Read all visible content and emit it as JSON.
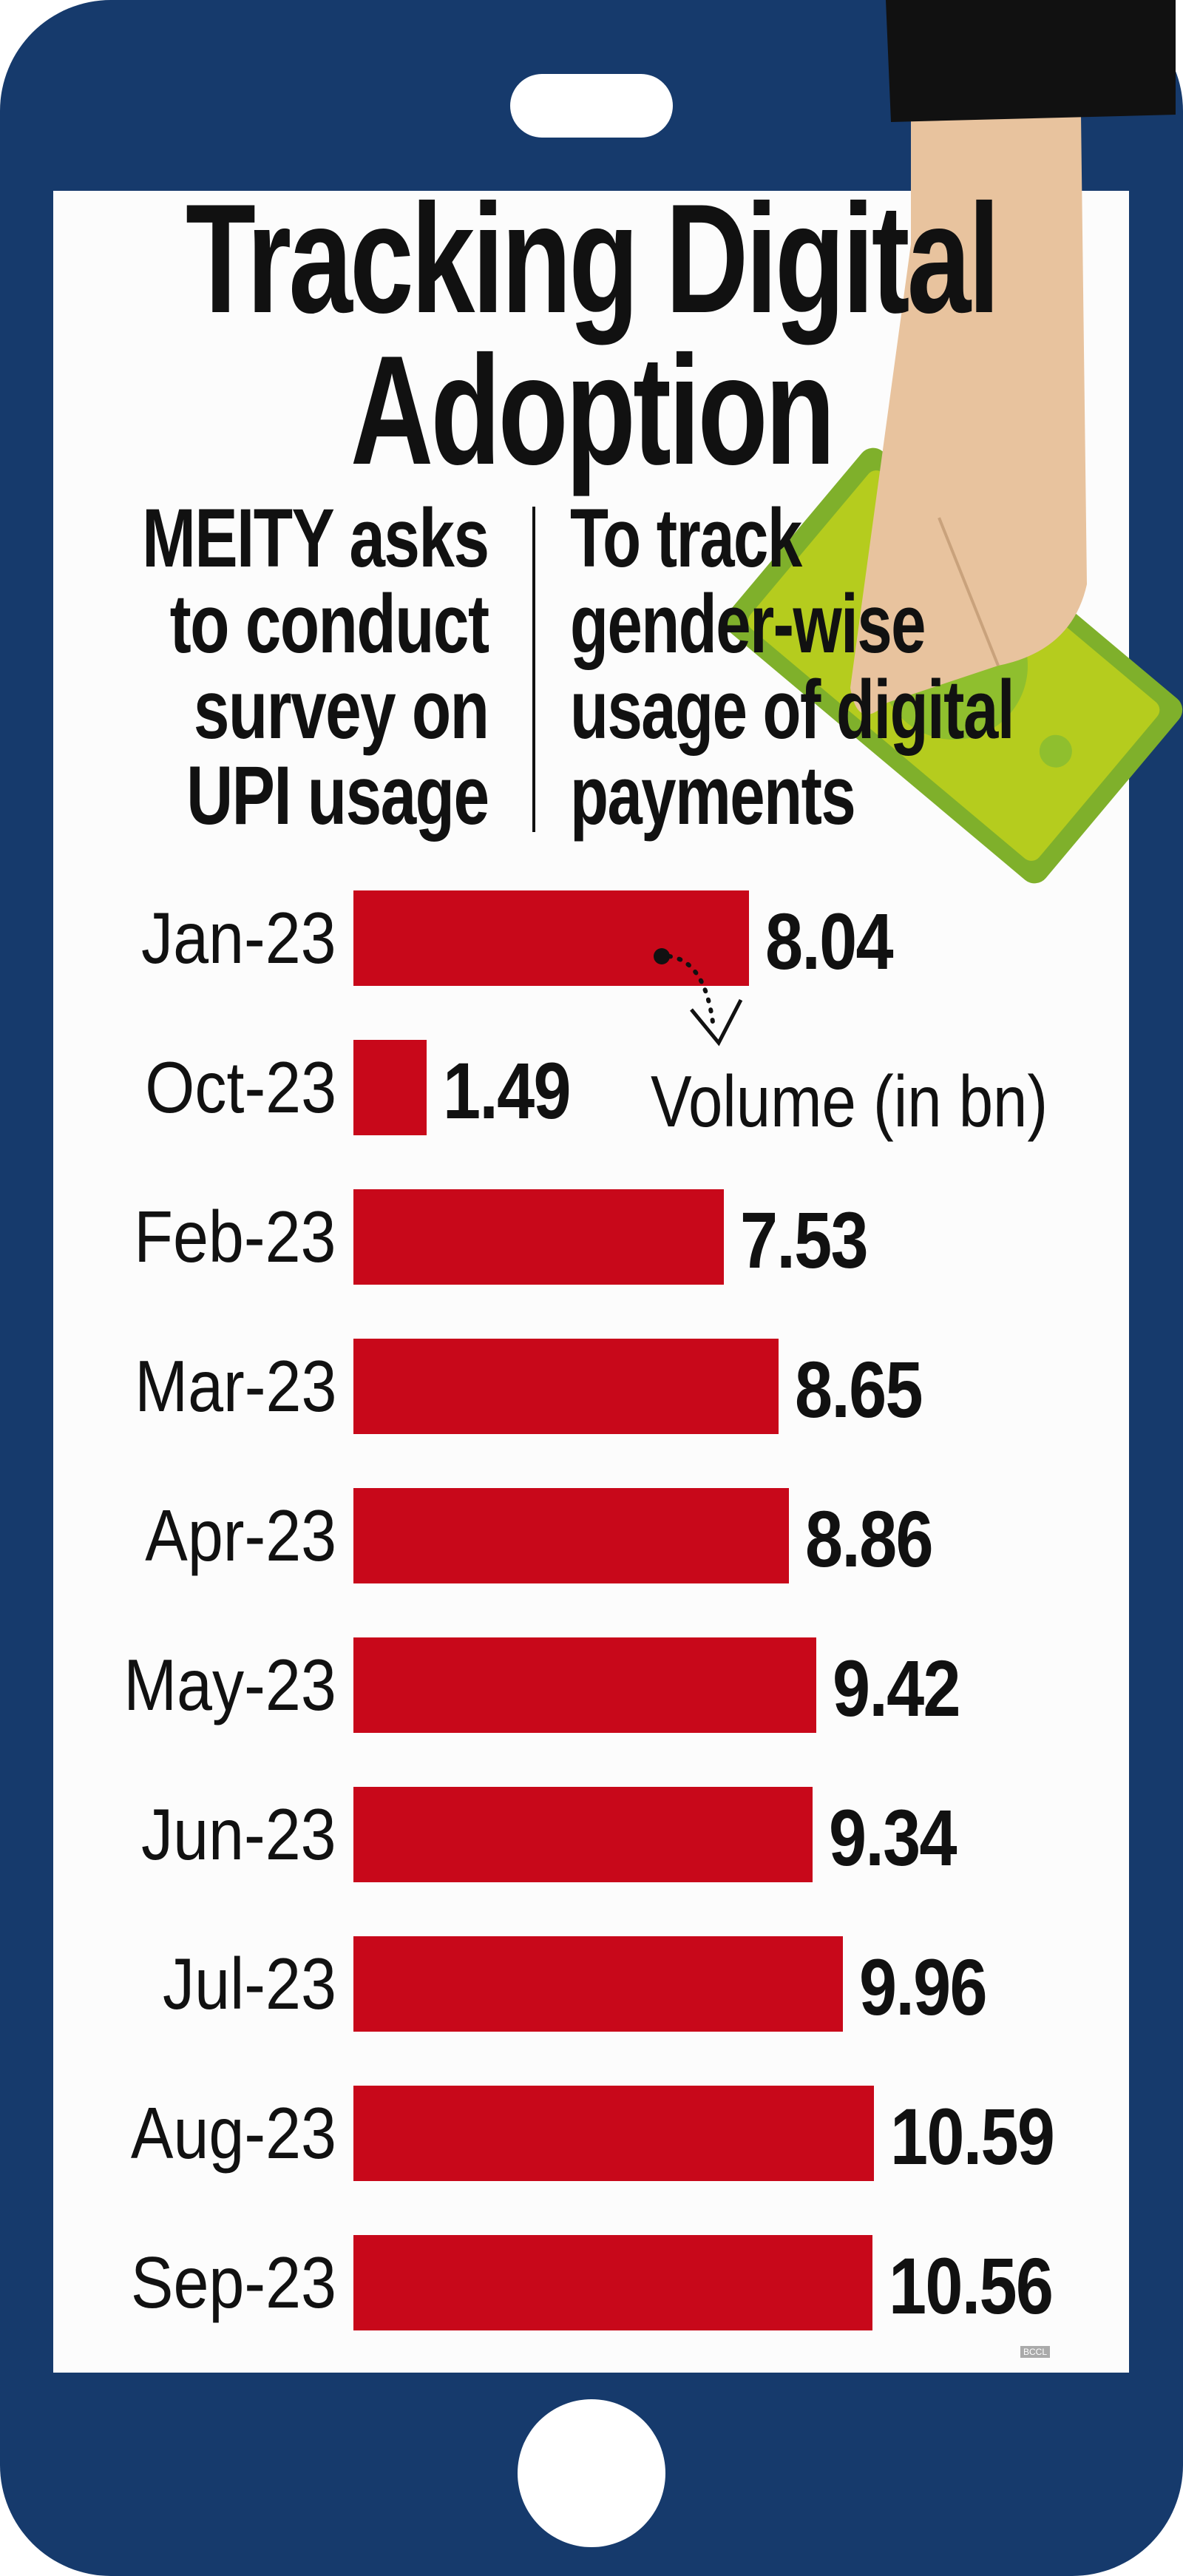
{
  "title": {
    "line1": "Tracking Digital",
    "line2": "Adoption"
  },
  "subtitle": {
    "left": [
      "MEITY asks",
      "to conduct",
      "survey on",
      "UPI usage"
    ],
    "right": [
      "To track",
      "gender-wise",
      "usage of digital",
      "payments"
    ]
  },
  "colors": {
    "phone": "#163a6c",
    "bar": "#c8081a",
    "money": "#b5cc1e",
    "skin": "#e8c39e"
  },
  "icons": [
    "hand-holding-money-icon",
    "phone-speaker-icon",
    "phone-home-button-icon"
  ],
  "watermark": "BCCL",
  "chart_data": {
    "type": "bar",
    "orientation": "horizontal",
    "title": "",
    "unit_label": "Volume (in bn)",
    "categories": [
      "Jan-23",
      "Oct-23",
      "Feb-23",
      "Mar-23",
      "Apr-23",
      "May-23",
      "Jun-23",
      "Jul-23",
      "Aug-23",
      "Sep-23"
    ],
    "values": [
      8.04,
      1.49,
      7.53,
      8.65,
      8.86,
      9.42,
      9.34,
      9.96,
      10.59,
      10.56
    ],
    "value_labels": [
      "8.04",
      "1.49",
      "7.53",
      "8.65",
      "8.86",
      "9.42",
      "9.34",
      "9.96",
      "10.59",
      "10.56"
    ],
    "xlim": [
      0,
      11
    ],
    "grid": false
  }
}
